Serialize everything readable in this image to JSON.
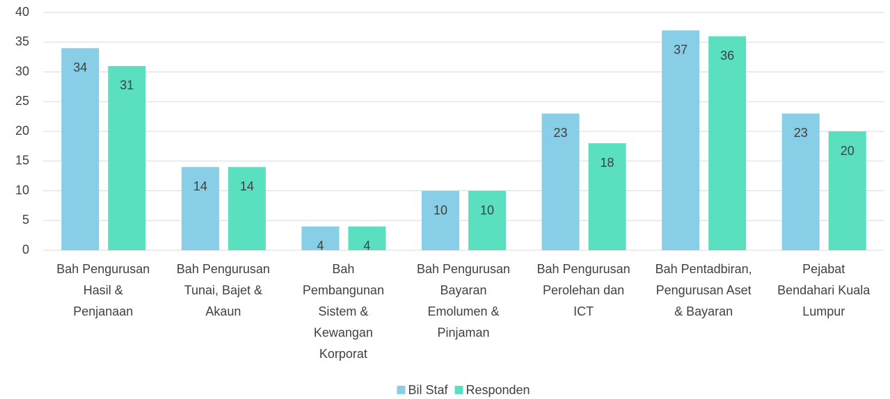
{
  "chart_data": {
    "type": "bar",
    "categories": [
      "Bah Pengurusan Hasil & Penjanaan",
      "Bah Pengurusan Tunai, Bajet & Akaun",
      "Bah Pembangunan Sistem & Kewangan Korporat",
      "Bah Pengurusan Bayaran Emolumen & Pinjaman",
      "Bah Pengurusan Perolehan dan ICT",
      "Bah Pentadbiran, Pengurusan Aset & Bayaran",
      "Pejabat Bendahari Kuala Lumpur"
    ],
    "series": [
      {
        "name": "Bil Staf",
        "color": "#87CEE6",
        "values": [
          34,
          14,
          4,
          10,
          23,
          37,
          23
        ]
      },
      {
        "name": "Responden",
        "color": "#5ADFBF",
        "values": [
          31,
          14,
          4,
          10,
          18,
          36,
          20
        ]
      }
    ],
    "ylim": [
      0,
      40
    ],
    "yticks": [
      0,
      5,
      10,
      15,
      20,
      25,
      30,
      35,
      40
    ],
    "grid": true,
    "legend": "bottom"
  }
}
